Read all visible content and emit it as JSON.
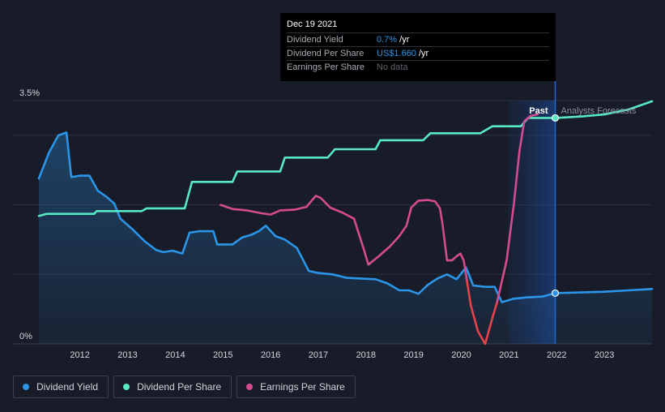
{
  "tooltip": {
    "date": "Dec 19 2021",
    "rows": [
      {
        "label": "Dividend Yield",
        "value_highlight": "0.7%",
        "value_suffix": " /yr"
      },
      {
        "label": "Dividend Per Share",
        "value_highlight": "US$1.660",
        "value_suffix": " /yr"
      },
      {
        "label": "Earnings Per Share",
        "value": "No data"
      }
    ]
  },
  "legend": [
    {
      "label": "Dividend Yield",
      "color": "#2b95e8"
    },
    {
      "label": "Dividend Per Share",
      "color": "#58e8c3"
    },
    {
      "label": "Earnings Per Share",
      "color": "#d54b8f"
    }
  ],
  "chart_data": {
    "type": "line",
    "y_ticks": [
      "3.5%",
      "0%"
    ],
    "ylim": [
      0,
      3.5
    ],
    "x_ticks": [
      "2012",
      "2013",
      "2014",
      "2015",
      "2016",
      "2017",
      "2018",
      "2019",
      "2020",
      "2021",
      "2022",
      "2023"
    ],
    "xlim": [
      2011.14,
      2024.0
    ],
    "past_label": "Past",
    "forecast_label": "Analysts Forecasts",
    "highlight_range": [
      2020.98,
      2021.97
    ],
    "cursor_x": 2021.97,
    "colors": {
      "dividend_yield": "#2b95e8",
      "dividend_per_share": "#58e8c3",
      "eps_positive": "#d54b8f",
      "eps_negative": "#e8424a",
      "grid": "#2c303b"
    },
    "series": [
      {
        "name": "Dividend Yield",
        "key": "dividend_yield",
        "points": [
          [
            2011.14,
            2.38
          ],
          [
            2011.35,
            2.75
          ],
          [
            2011.55,
            3.0
          ],
          [
            2011.72,
            3.04
          ],
          [
            2011.82,
            2.4
          ],
          [
            2012.0,
            2.42
          ],
          [
            2012.2,
            2.42
          ],
          [
            2012.38,
            2.2
          ],
          [
            2012.55,
            2.12
          ],
          [
            2012.72,
            2.02
          ],
          [
            2012.85,
            1.8
          ],
          [
            2013.1,
            1.65
          ],
          [
            2013.35,
            1.48
          ],
          [
            2013.6,
            1.35
          ],
          [
            2013.75,
            1.32
          ],
          [
            2013.95,
            1.34
          ],
          [
            2014.15,
            1.3
          ],
          [
            2014.3,
            1.6
          ],
          [
            2014.5,
            1.62
          ],
          [
            2014.8,
            1.62
          ],
          [
            2014.88,
            1.43
          ],
          [
            2015.0,
            1.43
          ],
          [
            2015.2,
            1.43
          ],
          [
            2015.4,
            1.53
          ],
          [
            2015.6,
            1.57
          ],
          [
            2015.75,
            1.62
          ],
          [
            2015.9,
            1.7
          ],
          [
            2016.1,
            1.55
          ],
          [
            2016.3,
            1.5
          ],
          [
            2016.55,
            1.38
          ],
          [
            2016.8,
            1.05
          ],
          [
            2017.0,
            1.02
          ],
          [
            2017.3,
            1.0
          ],
          [
            2017.6,
            0.95
          ],
          [
            2017.9,
            0.94
          ],
          [
            2018.2,
            0.93
          ],
          [
            2018.45,
            0.87
          ],
          [
            2018.7,
            0.77
          ],
          [
            2018.9,
            0.77
          ],
          [
            2019.1,
            0.72
          ],
          [
            2019.3,
            0.85
          ],
          [
            2019.5,
            0.94
          ],
          [
            2019.7,
            1.0
          ],
          [
            2019.9,
            0.93
          ],
          [
            2020.1,
            1.1
          ],
          [
            2020.25,
            0.84
          ],
          [
            2020.5,
            0.82
          ],
          [
            2020.7,
            0.82
          ],
          [
            2020.85,
            0.6
          ],
          [
            2021.1,
            0.65
          ],
          [
            2021.4,
            0.67
          ],
          [
            2021.7,
            0.68
          ],
          [
            2021.97,
            0.73
          ]
        ]
      },
      {
        "name": "Dividend Yield Forecast",
        "key": "dividend_yield",
        "points": [
          [
            2021.97,
            0.73
          ],
          [
            2022.5,
            0.74
          ],
          [
            2023.0,
            0.75
          ],
          [
            2023.5,
            0.77
          ],
          [
            2024.0,
            0.79
          ]
        ]
      },
      {
        "name": "Dividend Per Share",
        "key": "dividend_per_share",
        "points": [
          [
            2011.14,
            1.84
          ],
          [
            2011.3,
            1.87
          ],
          [
            2012.0,
            1.87
          ],
          [
            2012.3,
            1.87
          ],
          [
            2012.35,
            1.91
          ],
          [
            2013.0,
            1.91
          ],
          [
            2013.3,
            1.91
          ],
          [
            2013.4,
            1.95
          ],
          [
            2014.0,
            1.95
          ],
          [
            2014.2,
            1.95
          ],
          [
            2014.35,
            2.33
          ],
          [
            2015.0,
            2.33
          ],
          [
            2015.2,
            2.33
          ],
          [
            2015.3,
            2.48
          ],
          [
            2016.0,
            2.48
          ],
          [
            2016.2,
            2.48
          ],
          [
            2016.3,
            2.68
          ],
          [
            2017.0,
            2.68
          ],
          [
            2017.2,
            2.68
          ],
          [
            2017.35,
            2.8
          ],
          [
            2018.0,
            2.8
          ],
          [
            2018.2,
            2.8
          ],
          [
            2018.3,
            2.93
          ],
          [
            2019.0,
            2.93
          ],
          [
            2019.2,
            2.93
          ],
          [
            2019.35,
            3.03
          ],
          [
            2020.0,
            3.03
          ],
          [
            2020.4,
            3.03
          ],
          [
            2020.65,
            3.13
          ],
          [
            2021.0,
            3.13
          ],
          [
            2021.25,
            3.13
          ],
          [
            2021.4,
            3.25
          ],
          [
            2021.97,
            3.25
          ]
        ]
      },
      {
        "name": "Dividend Per Share Forecast",
        "key": "dividend_per_share",
        "points": [
          [
            2021.97,
            3.25
          ],
          [
            2022.5,
            3.27
          ],
          [
            2023.0,
            3.3
          ],
          [
            2023.5,
            3.37
          ],
          [
            2024.0,
            3.49
          ]
        ]
      },
      {
        "name": "Earnings Per Share",
        "key": "eps_positive",
        "points": [
          [
            2014.95,
            2.0
          ],
          [
            2015.2,
            1.94
          ],
          [
            2015.5,
            1.92
          ],
          [
            2015.8,
            1.88
          ],
          [
            2016.0,
            1.86
          ],
          [
            2016.2,
            1.92
          ],
          [
            2016.5,
            1.93
          ],
          [
            2016.75,
            1.97
          ],
          [
            2016.95,
            2.13
          ],
          [
            2017.05,
            2.1
          ],
          [
            2017.25,
            1.96
          ],
          [
            2017.5,
            1.89
          ],
          [
            2017.75,
            1.8
          ],
          [
            2017.95,
            1.37
          ],
          [
            2018.05,
            1.14
          ],
          [
            2018.25,
            1.25
          ],
          [
            2018.5,
            1.4
          ],
          [
            2018.7,
            1.55
          ],
          [
            2018.85,
            1.7
          ],
          [
            2018.95,
            1.96
          ],
          [
            2019.1,
            2.06
          ],
          [
            2019.3,
            2.07
          ],
          [
            2019.45,
            2.05
          ],
          [
            2019.55,
            1.95
          ],
          [
            2019.6,
            1.75
          ],
          [
            2019.7,
            1.2
          ],
          [
            2019.8,
            1.2
          ],
          [
            2019.9,
            1.26
          ],
          [
            2019.98,
            1.3
          ],
          [
            2020.05,
            1.2
          ],
          [
            2020.12,
            0.9
          ]
        ]
      },
      {
        "name": "Earnings Per Share Negative",
        "key": "eps_negative",
        "points": [
          [
            2020.12,
            0.9
          ],
          [
            2020.2,
            0.55
          ],
          [
            2020.35,
            0.18
          ],
          [
            2020.5,
            0.0
          ],
          [
            2020.65,
            0.37
          ],
          [
            2020.75,
            0.6
          ]
        ]
      },
      {
        "name": "Earnings Per Share Recovery",
        "key": "eps_positive",
        "points": [
          [
            2020.75,
            0.6
          ],
          [
            2020.95,
            1.2
          ],
          [
            2021.1,
            2.0
          ],
          [
            2021.22,
            2.78
          ],
          [
            2021.32,
            3.2
          ],
          [
            2021.45,
            3.28
          ],
          [
            2021.6,
            3.3
          ]
        ]
      }
    ],
    "markers": [
      {
        "key": "dividend_per_share",
        "x": 2021.97,
        "y": 3.25
      },
      {
        "key": "dividend_yield",
        "x": 2021.97,
        "y": 0.73
      }
    ]
  }
}
